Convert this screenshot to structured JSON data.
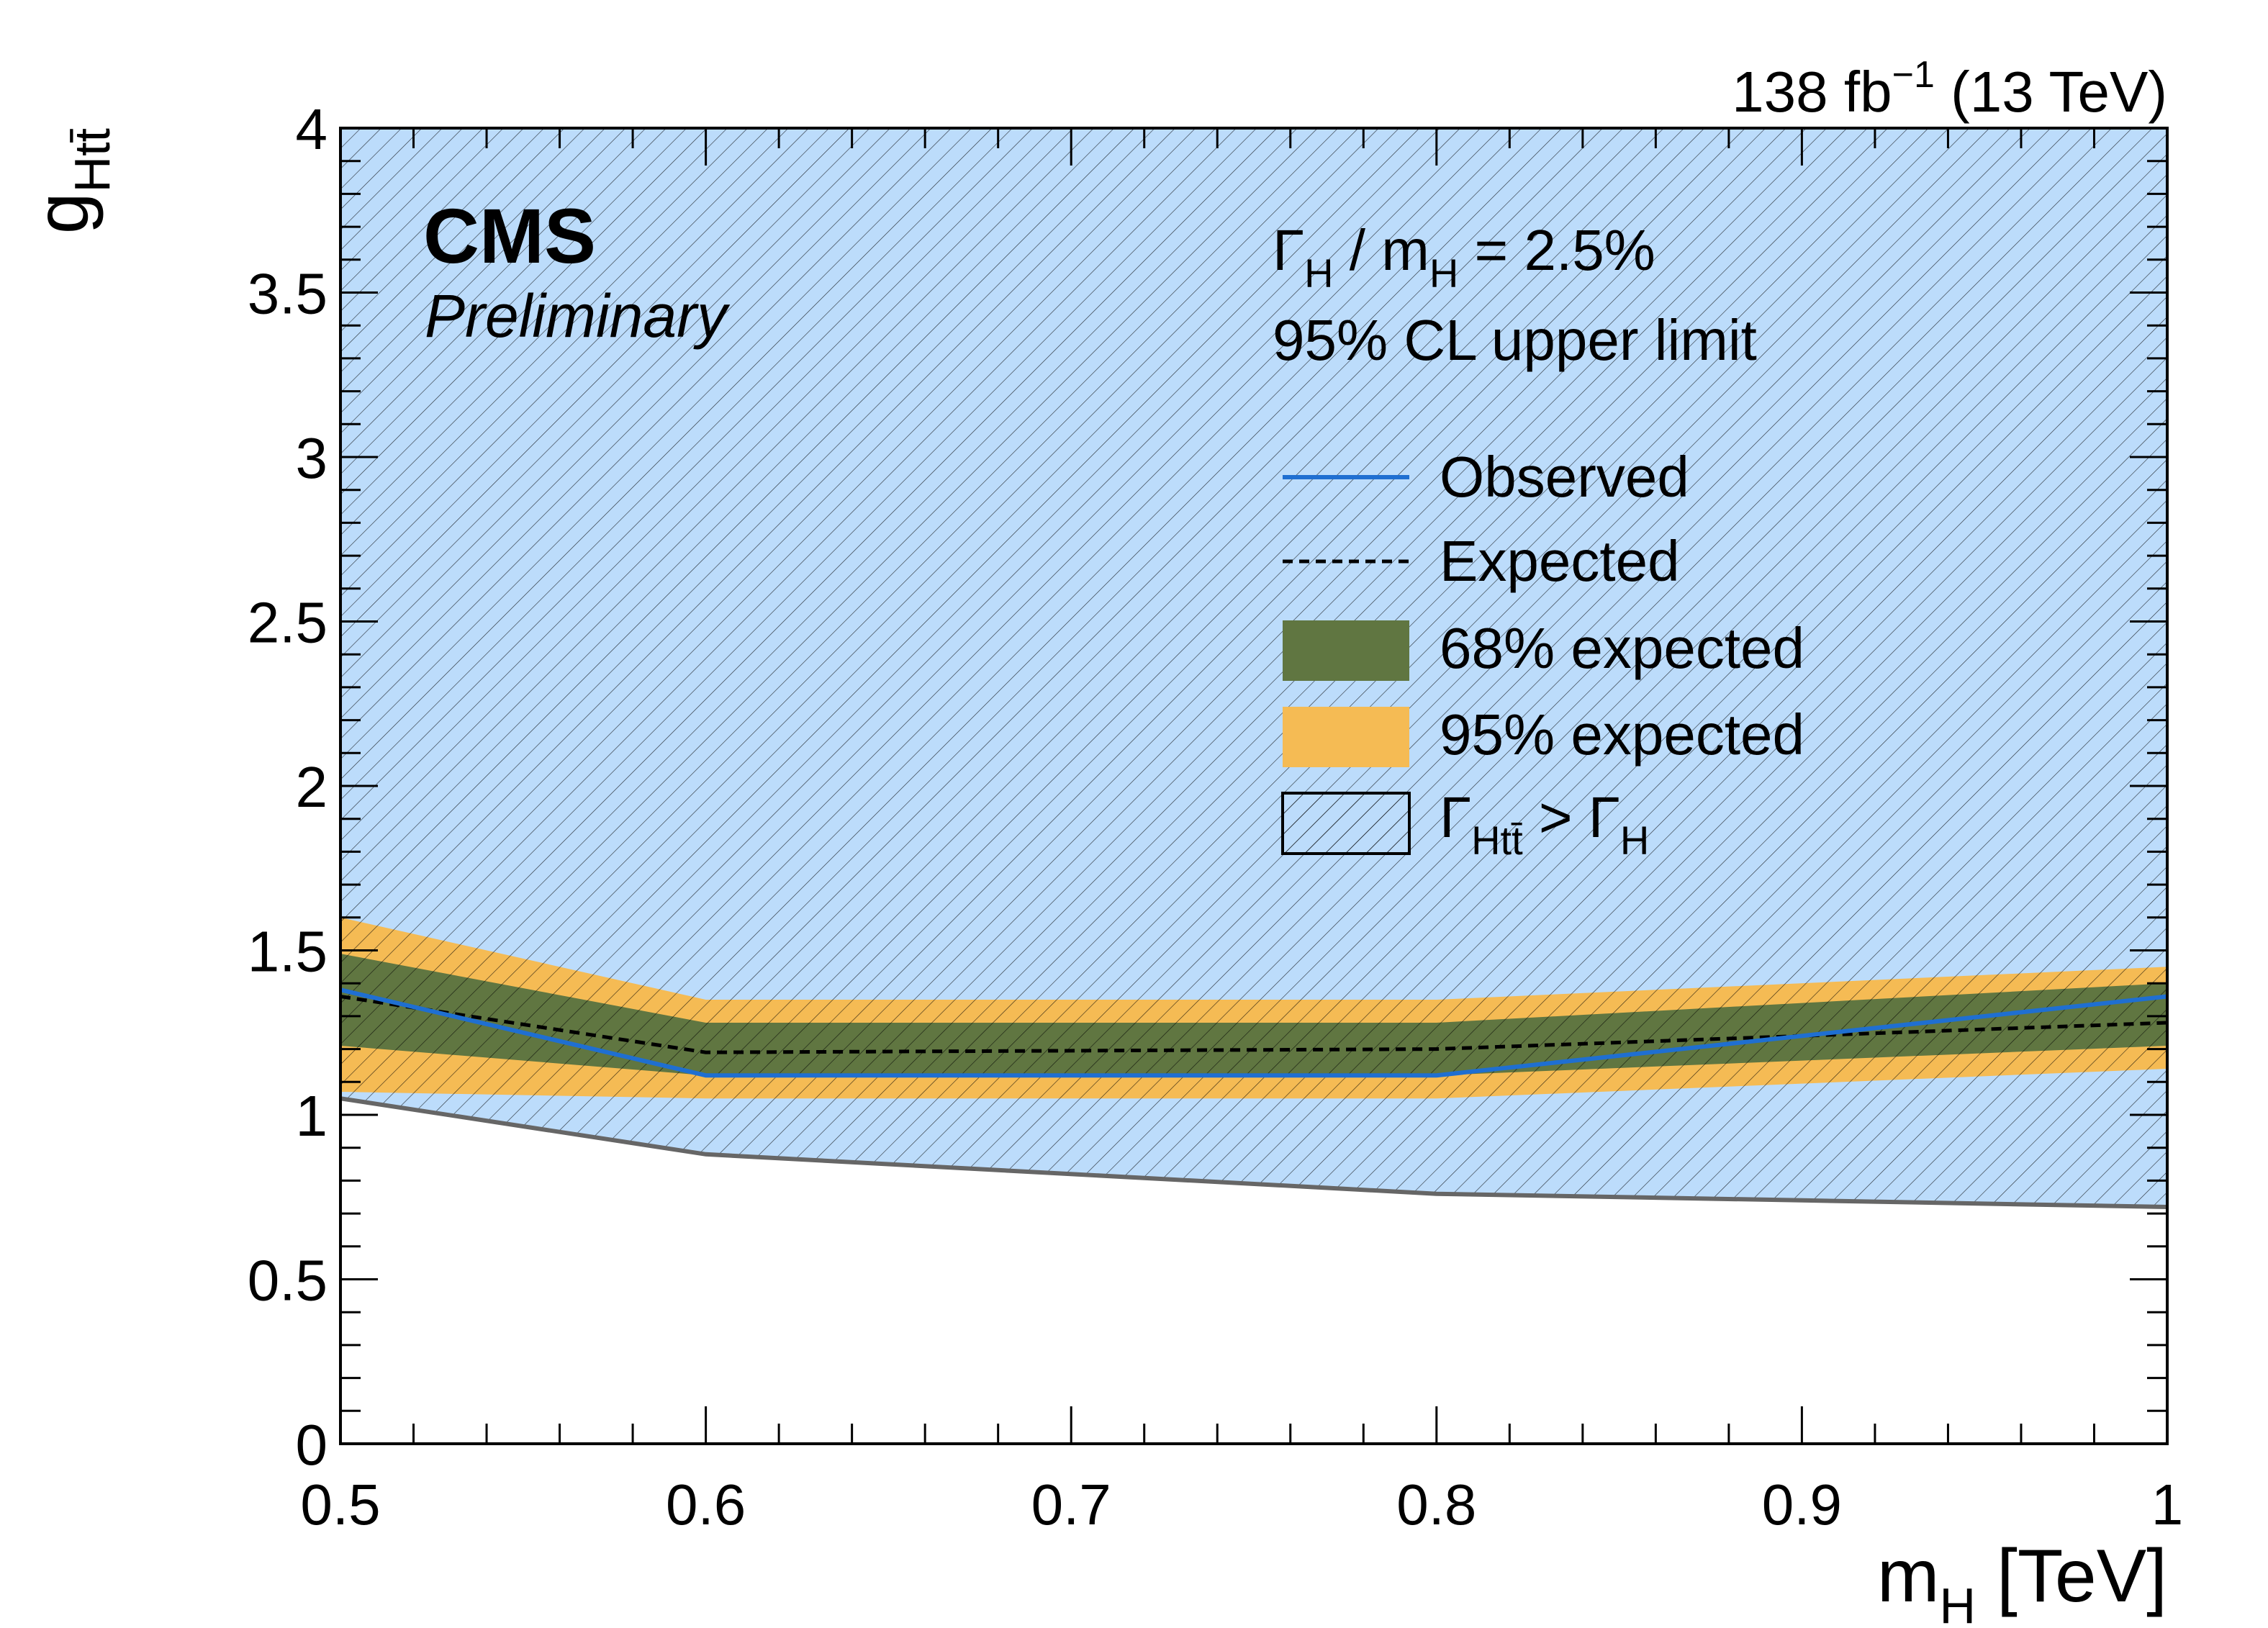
{
  "chart_data": {
    "type": "line",
    "header": {
      "lumi": "138 fb",
      "lumi_exp": "−1",
      "energy": " (13 TeV)"
    },
    "labels": {
      "cms": "CMS",
      "preliminary": "Preliminary",
      "width_gamma": "Γ",
      "width_gamma_sub": "H",
      "width_mid": " / m",
      "width_m_sub": "H",
      "width_value": " = 2.5%",
      "limit_text": "95% CL upper limit"
    },
    "xlabel": {
      "main": "m",
      "sub": "H",
      "unit": " [TeV]"
    },
    "ylabel": {
      "main": "g",
      "sub": "Htt̄"
    },
    "xlim": [
      0.5,
      1.0
    ],
    "ylim": [
      0,
      4
    ],
    "x_ticks": [
      {
        "value": 0.5,
        "label": "0.5"
      },
      {
        "value": 0.6,
        "label": "0.6"
      },
      {
        "value": 0.7,
        "label": "0.7"
      },
      {
        "value": 0.8,
        "label": "0.8"
      },
      {
        "value": 0.9,
        "label": "0.9"
      },
      {
        "value": 1.0,
        "label": "1"
      }
    ],
    "y_ticks": [
      {
        "value": 0,
        "label": "0"
      },
      {
        "value": 0.5,
        "label": "0.5"
      },
      {
        "value": 1,
        "label": "1"
      },
      {
        "value": 1.5,
        "label": "1.5"
      },
      {
        "value": 2,
        "label": "2"
      },
      {
        "value": 2.5,
        "label": "2.5"
      },
      {
        "value": 3,
        "label": "3"
      },
      {
        "value": 3.5,
        "label": "3.5"
      },
      {
        "value": 4,
        "label": "4"
      }
    ],
    "x": [
      0.5,
      0.6,
      0.8,
      1.0
    ],
    "series": [
      {
        "name": "Observed",
        "values": [
          1.38,
          1.12,
          1.12,
          1.36
        ],
        "color": "#1f6fd1",
        "style": "solid"
      },
      {
        "name": "Expected",
        "values": [
          1.36,
          1.19,
          1.2,
          1.28
        ],
        "color": "#000000",
        "style": "dashed"
      }
    ],
    "bands": [
      {
        "name": "95% expected",
        "lower": [
          1.07,
          1.05,
          1.05,
          1.14
        ],
        "upper": [
          1.6,
          1.35,
          1.35,
          1.45
        ],
        "color": "#f5bb54"
      },
      {
        "name": "68% expected",
        "lower": [
          1.21,
          1.12,
          1.12,
          1.21
        ],
        "upper": [
          1.49,
          1.28,
          1.28,
          1.4
        ],
        "color": "#607641"
      }
    ],
    "excluded_region": {
      "name": "ΓHtt̄ > ΓH",
      "boundary_x": [
        0.5,
        0.6,
        0.8,
        0.9,
        1.0
      ],
      "boundary_y": [
        1.05,
        0.88,
        0.76,
        0.74,
        0.72
      ]
    },
    "legend": {
      "placement": "top-right",
      "entries": [
        {
          "type": "line",
          "label": "Observed",
          "color": "#1f6fd1"
        },
        {
          "type": "dashed",
          "label": "Expected",
          "color": "#000000"
        },
        {
          "type": "fill",
          "label": "68% expected",
          "color": "#607641"
        },
        {
          "type": "fill",
          "label": "95% expected",
          "color": "#f5bb54"
        },
        {
          "type": "hatch",
          "label_main": "Γ",
          "label_sub": "Htt̄",
          "label_rel": " > Γ",
          "label_sub2": "H"
        }
      ]
    },
    "colors": {
      "excluded_fill": "#bcdcfb",
      "hatch": "#000000",
      "boundary_line": "#666666"
    }
  }
}
